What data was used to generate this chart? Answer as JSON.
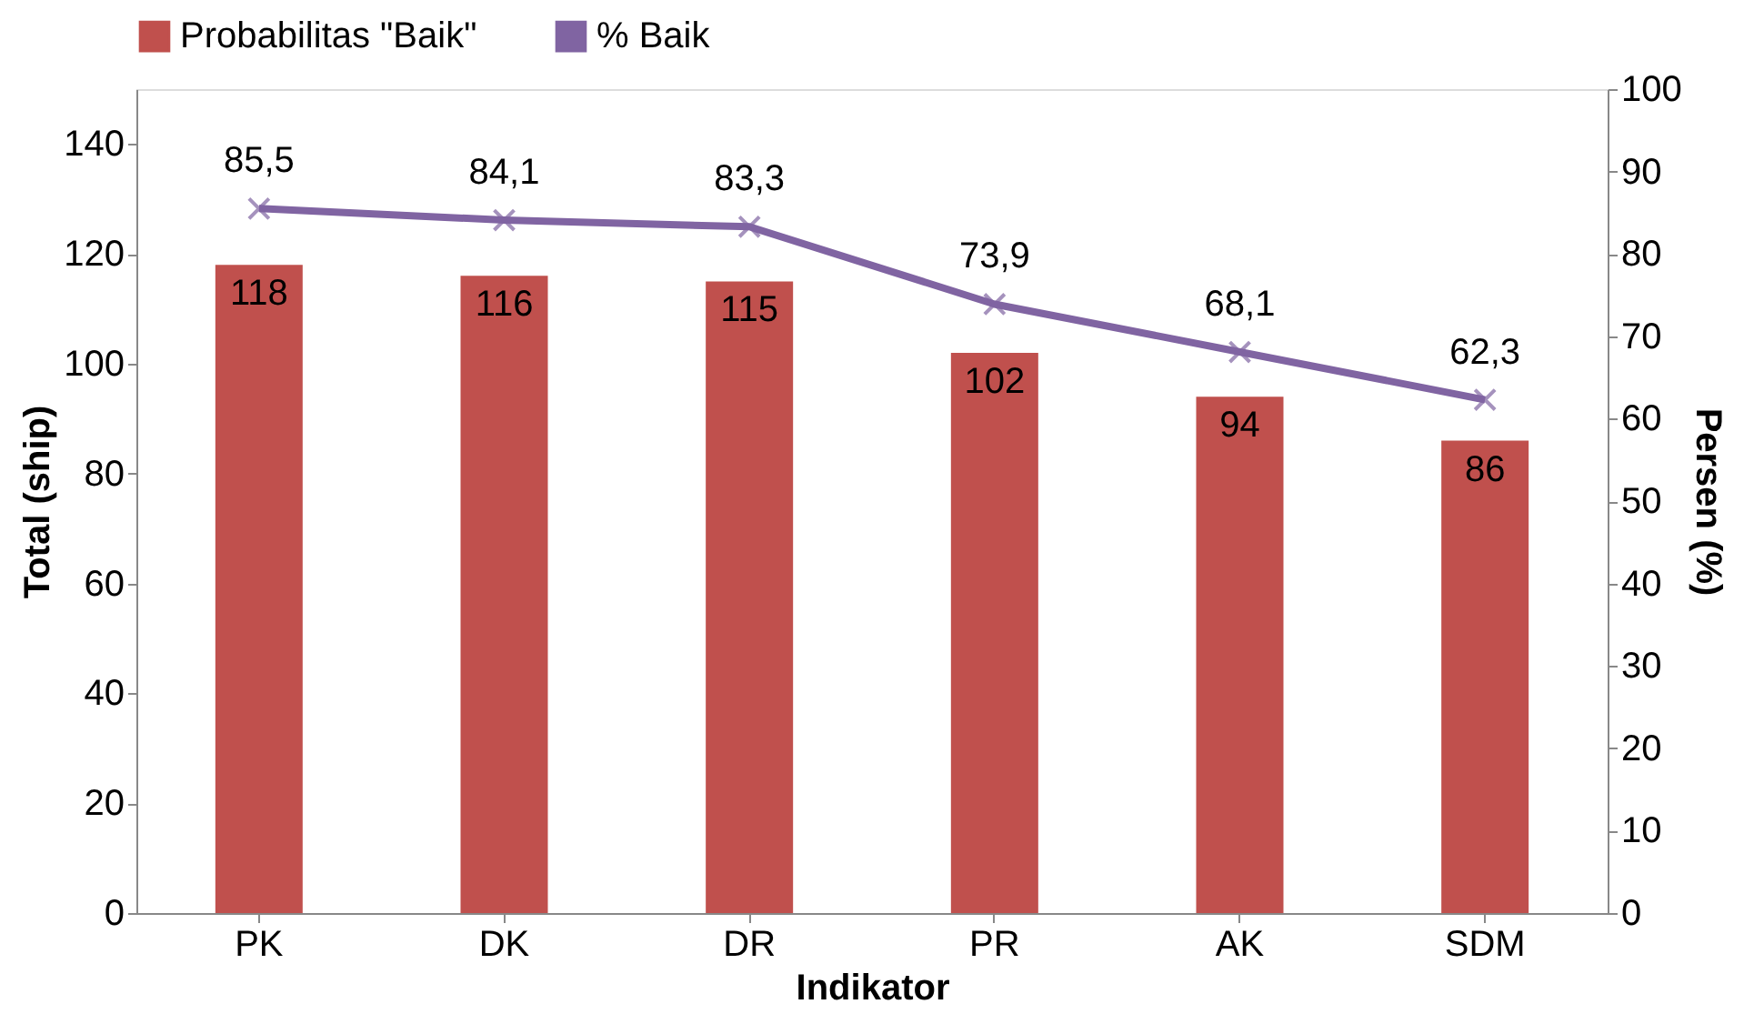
{
  "chart_data": {
    "type": "bar",
    "xlabel": "Indikator",
    "ylabel": "Total (ship)",
    "y2label": "Persen (%)",
    "categories": [
      "PK",
      "DK",
      "DR",
      "PR",
      "AK",
      "SDM"
    ],
    "series": [
      {
        "name": "Probabilitas \"Baik\"",
        "color": "#c0504d",
        "values": [
          118,
          116,
          115,
          102,
          94,
          86
        ]
      },
      {
        "name": "% Baik",
        "type": "line",
        "axis": "y2",
        "color": "#8064a2",
        "marker": "cross",
        "values": [
          85.5,
          84.1,
          83.3,
          73.9,
          68.1,
          62.3
        ],
        "value_labels": [
          "85,5",
          "84,1",
          "83,3",
          "73,9",
          "68,1",
          "62,3"
        ]
      }
    ],
    "data_labels": true,
    "ylim": [
      0,
      150
    ],
    "yticks": [
      0,
      20,
      40,
      60,
      80,
      100,
      120,
      140
    ],
    "y2lim": [
      0,
      100
    ],
    "y2ticks": [
      0,
      10,
      20,
      30,
      40,
      50,
      60,
      70,
      80,
      90,
      100
    ],
    "legend": "top",
    "grid": false
  }
}
